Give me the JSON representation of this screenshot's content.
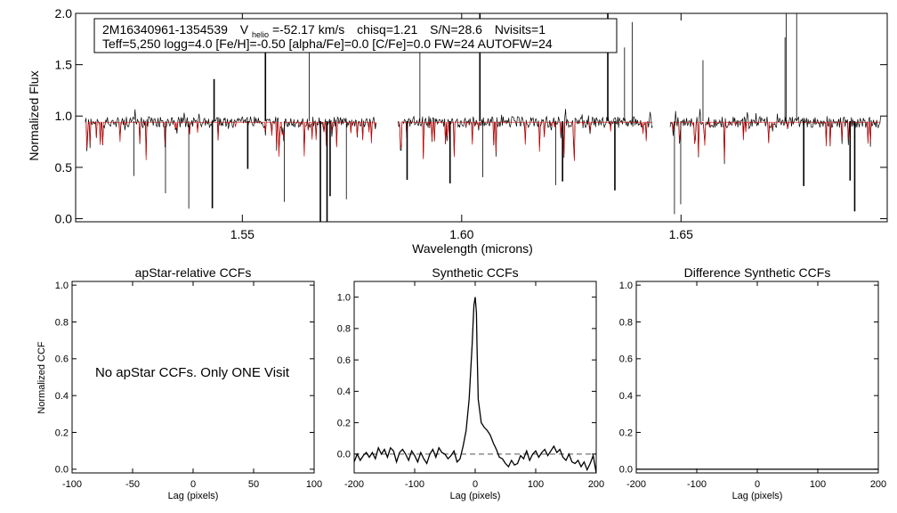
{
  "chart_data": [
    {
      "id": "spectrum",
      "type": "line",
      "title": "",
      "xlabel": "Wavelength (microns)",
      "ylabel": "Normalized Flux",
      "xlim": [
        1.512,
        1.697
      ],
      "ylim": [
        -0.03,
        2.0
      ],
      "x_ticks": [
        1.55,
        1.6,
        1.65
      ],
      "x_tick_labels": [
        "1.55",
        "1.60",
        "1.65"
      ],
      "y_ticks": [
        0.0,
        0.5,
        1.0,
        1.5,
        2.0
      ],
      "y_tick_labels": [
        "0.0",
        "0.5",
        "1.0",
        "1.5",
        "2.0"
      ],
      "series": [
        {
          "color": "#000000",
          "role": "observed",
          "level": 0.95
        },
        {
          "color": "#d00000",
          "role": "model",
          "level": 0.94
        }
      ],
      "chips": [
        [
          1.5142,
          1.5805
        ],
        [
          1.5855,
          1.6435
        ],
        [
          1.6475,
          1.6955
        ]
      ],
      "header": {
        "star_id": "2M16340961-1354539",
        "vhelio_symbol": "V",
        "vhelio_subscript": "helio",
        "vhelio_value": "=-52.17 km/s",
        "chisq": "chisq=1.21",
        "snr": "S/N=28.6",
        "nvisits": "Nvisits=1",
        "params": "Teff=5,250 logg=4.0 [Fe/H]=-0.50 [alpha/Fe]=0.0 [C/Fe]=0.0 FW=24 AUTOFW=24"
      }
    },
    {
      "id": "apstar-ccf",
      "type": "line",
      "title": "apStar-relative CCFs",
      "xlabel": "Lag (pixels)",
      "ylabel": "Normalized CCF",
      "xlim": [
        -100,
        100
      ],
      "ylim": [
        -0.02,
        1.02
      ],
      "x_ticks": [
        -100,
        -50,
        0,
        50,
        100
      ],
      "x_tick_labels": [
        "-100",
        "-50",
        "0",
        "50",
        "100"
      ],
      "y_ticks": [
        0.0,
        0.2,
        0.4,
        0.6,
        0.8,
        1.0
      ],
      "y_tick_labels": [
        "0.0",
        "0.2",
        "0.4",
        "0.6",
        "0.8",
        "1.0"
      ],
      "annotation": "No apStar CCFs.  Only ONE Visit",
      "series": []
    },
    {
      "id": "synthetic-ccf",
      "type": "line",
      "title": "Synthetic CCFs",
      "xlabel": "Lag (pixels)",
      "ylabel": "",
      "xlim": [
        -200,
        200
      ],
      "ylim": [
        -0.12,
        1.1
      ],
      "x_ticks": [
        -200,
        -100,
        0,
        100,
        200
      ],
      "x_tick_labels": [
        "-200",
        "-100",
        "0",
        "100",
        "200"
      ],
      "y_ticks": [
        0.0,
        0.2,
        0.4,
        0.6,
        0.8,
        1.0
      ],
      "y_tick_labels": [
        "0.0",
        "0.2",
        "0.4",
        "0.6",
        "0.8",
        "1.0"
      ],
      "zero_line": 0.0,
      "series": [
        {
          "color": "#000000",
          "x": [
            -200,
            -195,
            -190,
            -185,
            -180,
            -175,
            -170,
            -165,
            -160,
            -155,
            -150,
            -145,
            -140,
            -135,
            -130,
            -125,
            -120,
            -115,
            -110,
            -105,
            -100,
            -95,
            -90,
            -85,
            -80,
            -75,
            -70,
            -65,
            -60,
            -55,
            -50,
            -45,
            -40,
            -35,
            -30,
            -25,
            -20,
            -15,
            -10,
            -5,
            -3,
            -2,
            0,
            2,
            3,
            5,
            10,
            15,
            20,
            25,
            30,
            35,
            40,
            45,
            50,
            55,
            60,
            65,
            70,
            75,
            80,
            85,
            90,
            95,
            100,
            105,
            110,
            115,
            120,
            125,
            130,
            135,
            140,
            145,
            150,
            155,
            160,
            165,
            170,
            175,
            180,
            185,
            190,
            195,
            200
          ],
          "values": [
            -0.05,
            0.0,
            -0.04,
            -0.01,
            0.01,
            -0.02,
            0.01,
            -0.03,
            0.04,
            0.0,
            0.03,
            -0.02,
            0.04,
            0.02,
            -0.05,
            0.01,
            0.03,
            0.0,
            -0.04,
            0.02,
            -0.01,
            -0.05,
            0.01,
            -0.03,
            -0.06,
            0.0,
            0.03,
            -0.02,
            0.04,
            0.01,
            0.0,
            -0.03,
            -0.01,
            0.02,
            -0.05,
            -0.03,
            0.05,
            0.15,
            0.35,
            0.7,
            0.88,
            0.95,
            1.0,
            0.9,
            0.7,
            0.35,
            0.2,
            0.17,
            0.15,
            0.12,
            0.07,
            0.03,
            -0.02,
            -0.03,
            -0.06,
            -0.08,
            -0.04,
            -0.07,
            -0.06,
            -0.01,
            -0.03,
            0.02,
            -0.04,
            0.0,
            0.02,
            -0.02,
            0.01,
            0.03,
            -0.01,
            0.02,
            0.05,
            0.01,
            0.03,
            -0.02,
            -0.04,
            0.0,
            -0.05,
            -0.06,
            -0.04,
            -0.08,
            -0.05,
            -0.1,
            -0.06,
            -0.01,
            -0.12
          ]
        }
      ]
    },
    {
      "id": "difference-ccf",
      "type": "line",
      "title": "Difference Synthetic CCFs",
      "xlabel": "Lag (pixels)",
      "ylabel": "",
      "xlim": [
        -200,
        200
      ],
      "ylim": [
        -0.02,
        1.02
      ],
      "x_ticks": [
        -200,
        -100,
        0,
        100,
        200
      ],
      "x_tick_labels": [
        "-200",
        "-100",
        "0",
        "100",
        "200"
      ],
      "y_ticks": [
        0.0,
        0.2,
        0.4,
        0.6,
        0.8,
        1.0
      ],
      "y_tick_labels": [
        "0.0",
        "0.2",
        "0.4",
        "0.6",
        "0.8",
        "1.0"
      ],
      "series": []
    }
  ]
}
